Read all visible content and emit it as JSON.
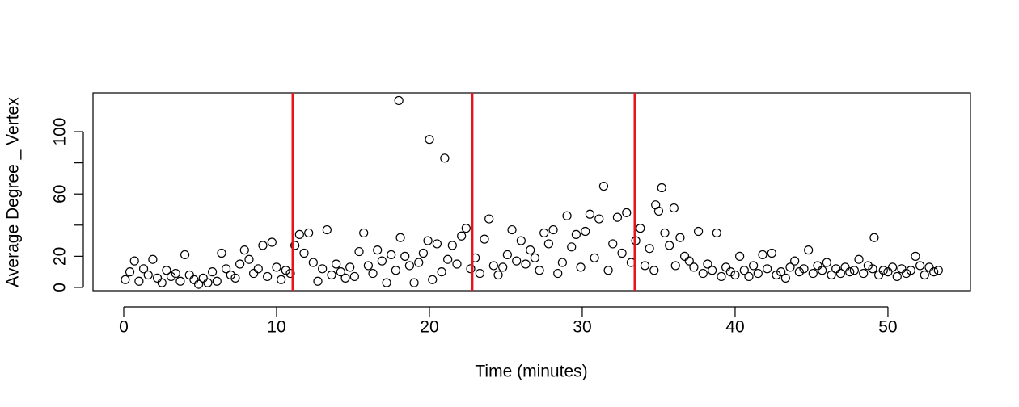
{
  "chart_data": {
    "type": "scatter",
    "xlabel": "Time (minutes)",
    "ylabel": "Average Degree _ Vertex",
    "xlim": [
      -2.01,
      55.4
    ],
    "ylim": [
      -2.1,
      124.9
    ],
    "xticks": [
      0,
      10,
      20,
      30,
      40,
      50
    ],
    "yticks": [
      0,
      20,
      60,
      100
    ],
    "yminor_ticks": [
      40,
      80
    ],
    "vlines": [
      11.06,
      22.8,
      33.44
    ],
    "vline_color": "#e8141c",
    "color": "#000000",
    "x": [
      0.1,
      0.4,
      0.7,
      1.0,
      1.3,
      1.6,
      1.9,
      2.2,
      2.5,
      2.8,
      3.1,
      3.4,
      3.7,
      4.0,
      4.3,
      4.6,
      4.9,
      5.2,
      5.5,
      5.8,
      6.1,
      6.4,
      6.7,
      7.0,
      7.3,
      7.6,
      7.9,
      8.2,
      8.5,
      8.8,
      9.1,
      9.4,
      9.7,
      10.0,
      10.3,
      10.6,
      10.9,
      11.2,
      11.5,
      11.8,
      12.1,
      12.4,
      12.7,
      13.0,
      13.3,
      13.6,
      13.9,
      14.2,
      14.5,
      14.8,
      15.1,
      15.4,
      15.7,
      16.0,
      16.3,
      16.6,
      16.9,
      17.2,
      17.5,
      17.8,
      18.0,
      18.1,
      18.4,
      18.7,
      19.0,
      19.3,
      19.6,
      19.9,
      20.0,
      20.2,
      20.5,
      20.8,
      21.0,
      21.2,
      21.5,
      21.8,
      22.1,
      22.4,
      22.7,
      23.0,
      23.3,
      23.6,
      23.9,
      24.2,
      24.5,
      24.8,
      25.1,
      25.4,
      25.7,
      26.0,
      26.3,
      26.6,
      26.9,
      27.2,
      27.5,
      27.8,
      28.1,
      28.4,
      28.7,
      29.0,
      29.3,
      29.6,
      29.9,
      30.2,
      30.5,
      30.8,
      31.1,
      31.4,
      31.7,
      32.0,
      32.3,
      32.6,
      32.9,
      33.2,
      33.5,
      33.8,
      34.1,
      34.4,
      34.7,
      34.8,
      35.0,
      35.2,
      35.4,
      35.7,
      36.0,
      36.1,
      36.4,
      36.7,
      37.0,
      37.3,
      37.6,
      37.9,
      38.2,
      38.5,
      38.8,
      39.1,
      39.4,
      39.7,
      40.0,
      40.3,
      40.6,
      40.9,
      41.2,
      41.5,
      41.8,
      42.1,
      42.4,
      42.7,
      43.0,
      43.3,
      43.6,
      43.9,
      44.2,
      44.5,
      44.8,
      45.1,
      45.4,
      45.7,
      46.0,
      46.3,
      46.6,
      46.9,
      47.2,
      47.5,
      47.8,
      48.1,
      48.4,
      48.7,
      49.0,
      49.1,
      49.4,
      49.7,
      50.0,
      50.3,
      50.6,
      50.9,
      51.2,
      51.5,
      51.8,
      52.1,
      52.4,
      52.7,
      53.0,
      53.3
    ],
    "y": [
      5,
      10,
      17,
      4,
      12,
      8,
      18,
      6,
      3,
      11,
      7,
      9,
      4,
      21,
      8,
      5,
      2,
      6,
      3,
      10,
      4,
      22,
      12,
      8,
      6,
      15,
      24,
      18,
      9,
      12,
      27,
      7,
      29,
      13,
      5,
      11,
      9,
      27,
      34,
      22,
      35,
      16,
      4,
      12,
      37,
      8,
      15,
      10,
      6,
      13,
      7,
      23,
      35,
      14,
      9,
      24,
      17,
      3,
      21,
      11,
      120,
      32,
      20,
      14,
      3,
      16,
      22,
      30,
      95,
      5,
      28,
      10,
      83,
      18,
      27,
      15,
      33,
      38,
      12,
      19,
      9,
      31,
      44,
      14,
      8,
      13,
      21,
      37,
      17,
      30,
      15,
      24,
      19,
      11,
      35,
      28,
      37,
      9,
      16,
      46,
      26,
      34,
      13,
      36,
      47,
      19,
      44,
      65,
      11,
      28,
      45,
      22,
      48,
      16,
      30,
      38,
      14,
      25,
      11,
      53,
      49,
      64,
      35,
      27,
      51,
      14,
      32,
      20,
      17,
      13,
      36,
      9,
      15,
      11,
      35,
      7,
      13,
      10,
      8,
      20,
      11,
      7,
      14,
      9,
      21,
      12,
      22,
      8,
      10,
      6,
      13,
      17,
      10,
      12,
      24,
      9,
      14,
      11,
      16,
      8,
      12,
      9,
      13,
      10,
      11,
      18,
      9,
      14,
      12,
      32,
      8,
      11,
      10,
      13,
      7,
      12,
      9,
      11,
      20,
      14,
      8,
      13,
      10,
      11
    ]
  }
}
